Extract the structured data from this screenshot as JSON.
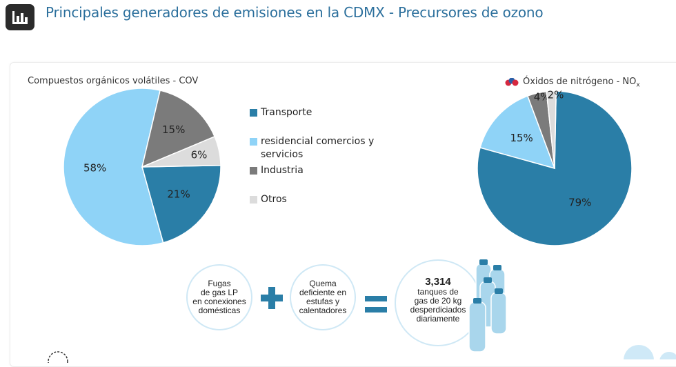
{
  "page": {
    "title": "Principales generadores de emisiones en la CDMX - Precursores de ozono",
    "header_icon": "bar-chart-icon"
  },
  "chart_data": [
    {
      "type": "pie",
      "title": "Compuestos orgánicos volátiles - COV",
      "slices": [
        {
          "name": "Transporte",
          "value": 21,
          "label": "21%",
          "color": "#2a7ea7"
        },
        {
          "name": "residencial comercios y servicios",
          "value": 58,
          "label": "58%",
          "color": "#8fd3f7"
        },
        {
          "name": "Industria",
          "value": 15,
          "label": "15%",
          "color": "#7b7b7b"
        },
        {
          "name": "Otros",
          "value": 6,
          "label": "6%",
          "color": "#dcdcdc"
        }
      ]
    },
    {
      "type": "pie",
      "title": "Óxidos de nitrógeno - NO",
      "title_subscript": "x",
      "title_icon": "molecule-icon",
      "slices": [
        {
          "name": "Transporte",
          "value": 79,
          "label": "79%",
          "color": "#2a7ea7"
        },
        {
          "name": "residencial comercios y servicios",
          "value": 15,
          "label": "15%",
          "color": "#8fd3f7"
        },
        {
          "name": "Industria",
          "value": 4,
          "label": "4%",
          "color": "#7b7b7b"
        },
        {
          "name": "Otros",
          "value": 2,
          "label": "2%",
          "color": "#dcdcdc"
        }
      ]
    }
  ],
  "legend": {
    "items": [
      {
        "label": "Transporte",
        "label_lines": [
          "Transporte"
        ],
        "color": "#2a7ea7"
      },
      {
        "label": "residencial comercios y servicios",
        "label_lines": [
          "residencial comercios y",
          "servicios"
        ],
        "color": "#8fd3f7"
      },
      {
        "label": "Industria",
        "label_lines": [
          "Industria"
        ],
        "color": "#7b7b7b"
      },
      {
        "label": "Otros",
        "label_lines": [
          "Otros"
        ],
        "color": "#dcdcdc"
      }
    ]
  },
  "equation": {
    "term1": [
      "Fugas",
      "de gas LP",
      "en conexiones",
      "domésticas"
    ],
    "plus_icon": "plus-icon",
    "term2": [
      "Quema",
      "deficiente en",
      "estufas y",
      "calentadores"
    ],
    "equals_icon": "equals-icon",
    "result_number": "3,314",
    "result_text": [
      "tanques de",
      "gas de 20 kg",
      "desperdiciados",
      "diariamente"
    ],
    "result_icon": "gas-tanks-icon",
    "accent_color": "#2a7ea7"
  }
}
